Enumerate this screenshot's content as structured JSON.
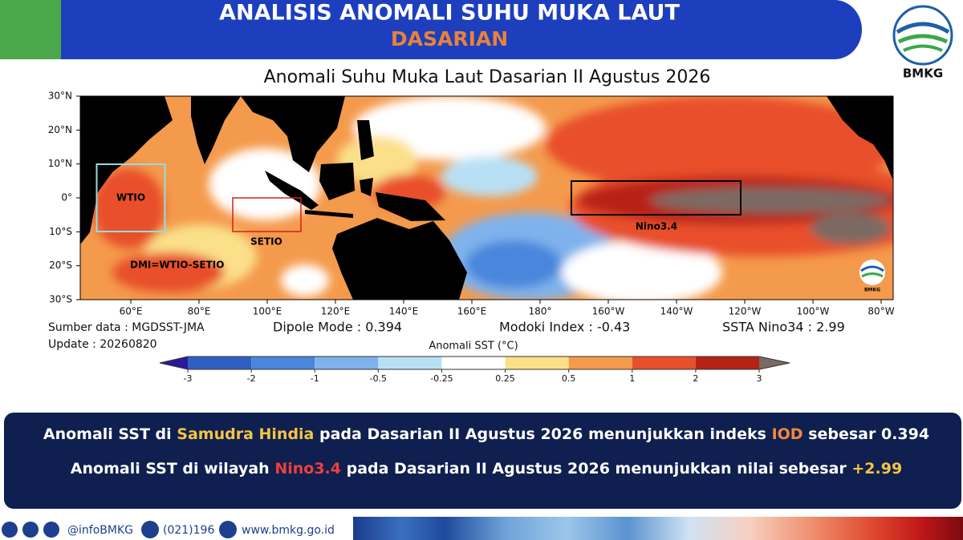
{
  "header": {
    "title": "ANALISIS ANOMALI SUHU MUKA LAUT",
    "subtitle": "DASARIAN",
    "logo_text": "BMKG"
  },
  "map": {
    "title": "Anomali Suhu Muka Laut Dasarian II Agustus 2026",
    "lat_labels": [
      "30°N",
      "20°N",
      "10°N",
      "0°",
      "10°S",
      "20°S",
      "30°S"
    ],
    "lon_labels": [
      "60°E",
      "80°E",
      "100°E",
      "120°E",
      "140°E",
      "160°E",
      "180°",
      "160°W",
      "140°W",
      "120°W",
      "100°W",
      "80°W"
    ],
    "wtio_label": "WTIO",
    "setio_label": "SETIO",
    "nino_label": "Nino3.4",
    "dmi_label": "DMI=WTIO-SETIO",
    "logo_text": "BMKG"
  },
  "info": {
    "source": "Sumber data : MGDSST-JMA",
    "update": "Update : 20260820",
    "dipole": "Dipole Mode : 0.394",
    "modoki": "Modoki Index : -0.43",
    "ssta": "SSTA Nino34 : 2.99"
  },
  "colorbar": {
    "label": "Anomali SST (°C)",
    "ticks": [
      -3,
      -2,
      -1,
      -0.5,
      -0.25,
      0.25,
      0.5,
      1,
      2,
      3
    ],
    "colors": [
      "#2a1a9a",
      "#2f5fc4",
      "#4a86dc",
      "#7fb2ec",
      "#b8e0f5",
      "#ffffff",
      "#fbe08a",
      "#f49a4c",
      "#e8502a",
      "#b82215",
      "#7a6a64"
    ]
  },
  "banner": {
    "lines": [
      [
        {
          "text": "Anomali SST di ",
          "color": "#ffffff"
        },
        {
          "text": "Samudra Hindia",
          "color": "#f5c542"
        },
        {
          "text": " pada Dasarian II Agustus 2026 menunjukkan indeks ",
          "color": "#ffffff"
        },
        {
          "text": "IOD",
          "color": "#f08a3a"
        },
        {
          "text": " sebesar 0.394",
          "color": "#ffffff"
        }
      ],
      [
        {
          "text": "Anomali SST di wilayah ",
          "color": "#ffffff"
        },
        {
          "text": "Nino3.4",
          "color": "#f0403a"
        },
        {
          "text": " pada Dasarian II Agustus 2026 menunjukkan nilai sebesar ",
          "color": "#ffffff"
        },
        {
          "text": "+2.99",
          "color": "#f5c542"
        }
      ]
    ]
  },
  "footer": {
    "social": "@infoBMKG",
    "phone": "(021)196",
    "web": "www.bmkg.go.id"
  }
}
